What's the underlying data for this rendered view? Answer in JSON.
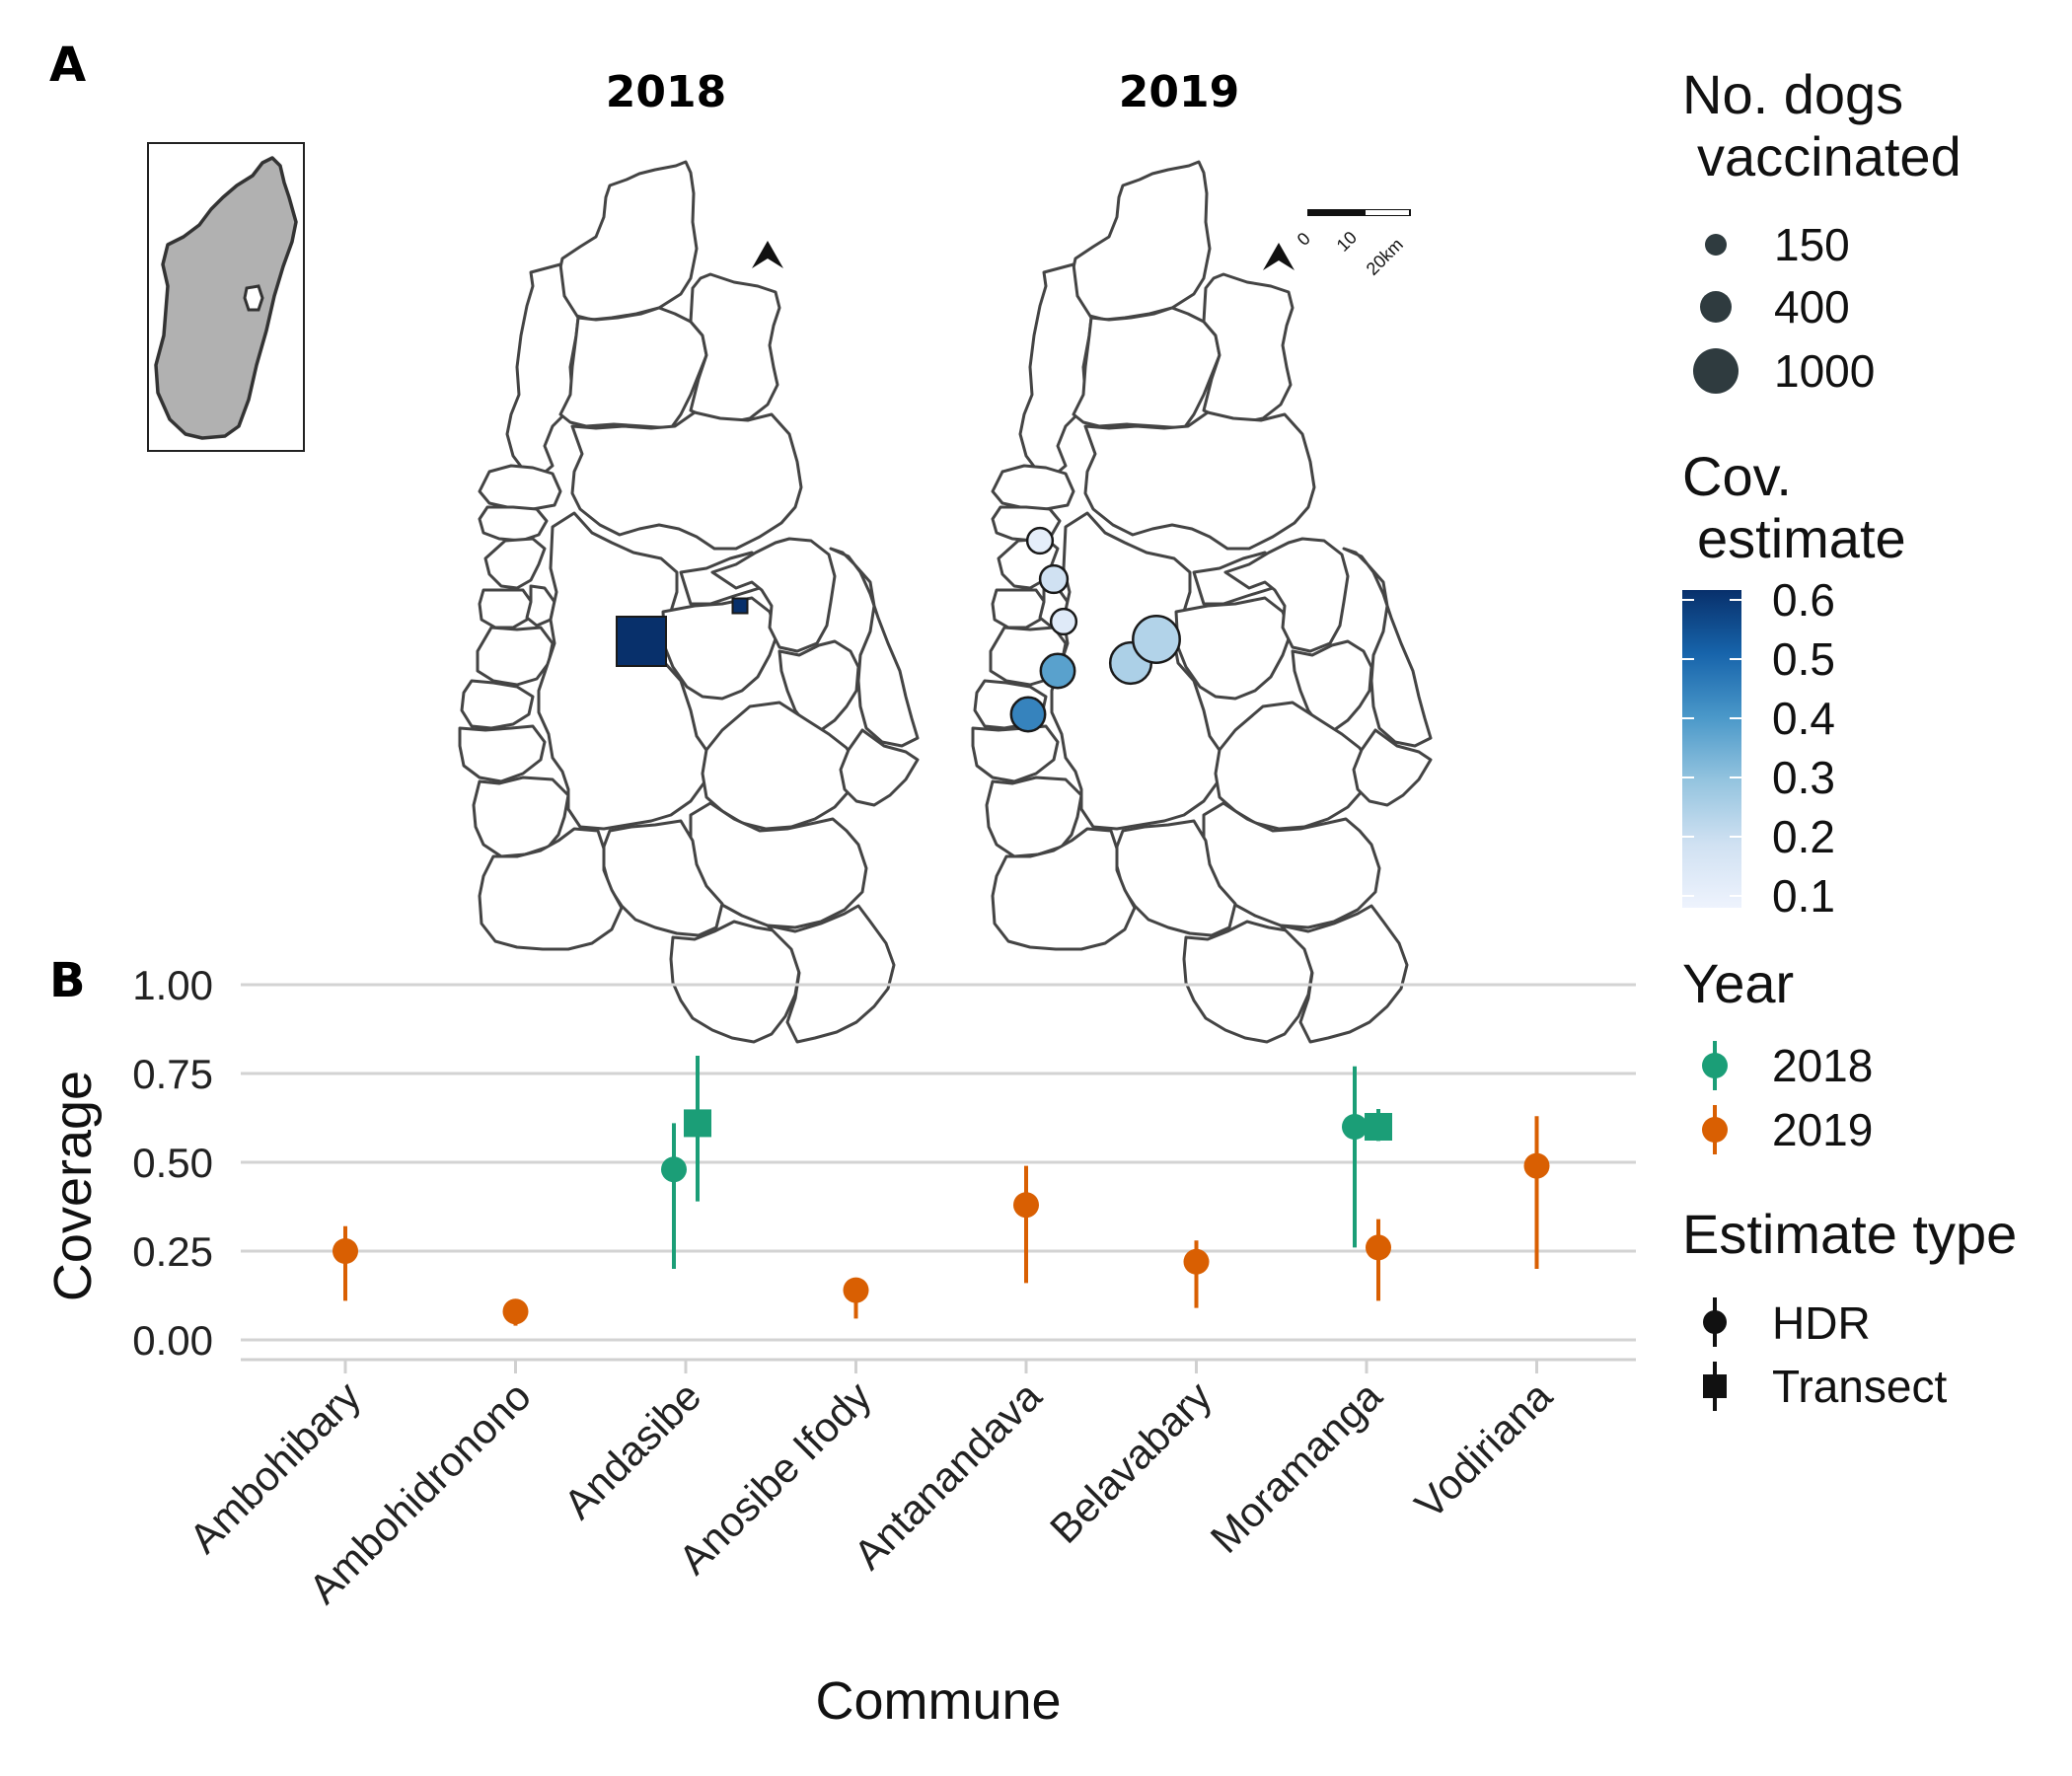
{
  "panel_a": {
    "letter": "A",
    "map_titles": [
      "2018",
      "2019"
    ],
    "scale_bar_labels": [
      "0",
      "10",
      "20km"
    ],
    "legend_size": {
      "title_lines": [
        "No. dogs",
        "vaccinated"
      ],
      "entries": [
        "150",
        "400",
        "1000"
      ]
    },
    "legend_color": {
      "title_lines": [
        "Cov.",
        "estimate"
      ],
      "ticks": [
        "0.6",
        "0.5",
        "0.4",
        "0.3",
        "0.2",
        "0.1"
      ],
      "colors": {
        "low": "#eef3fd",
        "high": "#08306b"
      }
    },
    "markers_2018": [
      {
        "shape": "square",
        "dogs": 1000,
        "coverage": 0.6
      },
      {
        "shape": "square",
        "dogs": 150,
        "coverage": 0.6
      }
    ],
    "markers_2019": [
      {
        "shape": "circle",
        "dogs": 150,
        "coverage": 0.13
      },
      {
        "shape": "circle",
        "dogs": 200,
        "coverage": 0.2
      },
      {
        "shape": "circle",
        "dogs": 150,
        "coverage": 0.15
      },
      {
        "shape": "circle",
        "dogs": 400,
        "coverage": 0.38
      },
      {
        "shape": "circle",
        "dogs": 400,
        "coverage": 0.44
      },
      {
        "shape": "circle",
        "dogs": 700,
        "coverage": 0.26
      },
      {
        "shape": "circle",
        "dogs": 1000,
        "coverage": 0.25
      }
    ]
  },
  "panel_b": {
    "letter": "B",
    "legend_year": {
      "title": "Year",
      "entries": [
        {
          "label": "2018",
          "color": "#1b9e77"
        },
        {
          "label": "2019",
          "color": "#d95f02"
        }
      ]
    },
    "legend_type": {
      "title": "Estimate type",
      "entries": [
        {
          "label": "HDR",
          "shape": "circle"
        },
        {
          "label": "Transect",
          "shape": "square"
        }
      ]
    }
  },
  "chart_data": {
    "type": "scatter",
    "xlabel": "Commune",
    "ylabel": "Coverage",
    "ylim": [
      0,
      1
    ],
    "y_ticks": [
      "0.00",
      "0.25",
      "0.50",
      "0.75",
      "1.00"
    ],
    "grid": true,
    "categories": [
      "Ambohibary",
      "Ambohidronono",
      "Andasibe",
      "Anosibe Ifody",
      "Antanandava",
      "Belavabary",
      "Moramanga",
      "Vodiriana"
    ],
    "series": [
      {
        "name": "2018",
        "color": "#1b9e77",
        "points": [
          {
            "category": "Andasibe",
            "type": "HDR",
            "y": 0.48,
            "lo": 0.2,
            "hi": 0.61
          },
          {
            "category": "Andasibe",
            "type": "Transect",
            "y": 0.61,
            "lo": 0.39,
            "hi": 0.8
          },
          {
            "category": "Moramanga",
            "type": "HDR",
            "y": 0.6,
            "lo": 0.26,
            "hi": 0.77
          },
          {
            "category": "Moramanga",
            "type": "Transect",
            "y": 0.6,
            "lo": 0.56,
            "hi": 0.65
          }
        ]
      },
      {
        "name": "2019",
        "color": "#d95f02",
        "points": [
          {
            "category": "Ambohibary",
            "type": "HDR",
            "y": 0.25,
            "lo": 0.11,
            "hi": 0.32
          },
          {
            "category": "Ambohidronono",
            "type": "HDR",
            "y": 0.08,
            "lo": 0.04,
            "hi": 0.09
          },
          {
            "category": "Anosibe Ifody",
            "type": "HDR",
            "y": 0.14,
            "lo": 0.06,
            "hi": 0.17
          },
          {
            "category": "Antanandava",
            "type": "HDR",
            "y": 0.38,
            "lo": 0.16,
            "hi": 0.49
          },
          {
            "category": "Belavabary",
            "type": "HDR",
            "y": 0.22,
            "lo": 0.09,
            "hi": 0.28
          },
          {
            "category": "Moramanga",
            "type": "HDR",
            "y": 0.26,
            "lo": 0.11,
            "hi": 0.34
          },
          {
            "category": "Vodiriana",
            "type": "HDR",
            "y": 0.49,
            "lo": 0.2,
            "hi": 0.63
          }
        ]
      }
    ]
  }
}
